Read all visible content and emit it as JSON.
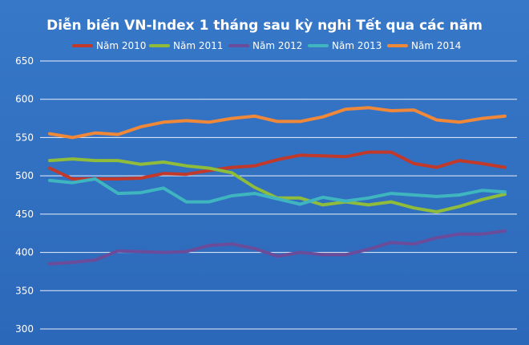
{
  "chart_data": {
    "type": "line",
    "title": "Diễn biến VN-Index 1 tháng sau kỳ nghi Tết qua các năm",
    "xlabel": "",
    "ylabel": "",
    "ylim": [
      300,
      650
    ],
    "yticks": [
      300,
      350,
      400,
      450,
      500,
      550,
      600,
      650
    ],
    "grid": true,
    "legend_position": "top",
    "background_color": "#3374c4",
    "gridline_color": "#ffffff",
    "series": [
      {
        "name": "Năm 2010",
        "color": "#c0392b",
        "values": [
          510,
          496,
          496,
          496,
          497,
          503,
          502,
          507,
          511,
          513,
          521,
          527,
          526,
          525,
          531,
          531,
          516,
          511,
          520,
          516,
          511
        ]
      },
      {
        "name": "Năm 2011",
        "color": "#8fbc3a",
        "values": [
          520,
          522,
          520,
          520,
          515,
          518,
          513,
          510,
          504,
          485,
          471,
          471,
          462,
          466,
          462,
          466,
          458,
          453,
          460,
          469,
          476
        ]
      },
      {
        "name": "Năm 2012",
        "color": "#6b4c9a",
        "values": [
          385,
          387,
          390,
          402,
          401,
          400,
          401,
          409,
          411,
          405,
          395,
          400,
          397,
          397,
          404,
          413,
          411,
          419,
          424,
          424,
          428
        ]
      },
      {
        "name": "Năm 2013",
        "color": "#3fb6bf",
        "values": [
          494,
          491,
          496,
          477,
          478,
          484,
          466,
          466,
          474,
          477,
          470,
          463,
          472,
          467,
          471,
          477,
          475,
          473,
          475,
          481,
          479
        ]
      },
      {
        "name": "Năm 2014",
        "color": "#f0883a",
        "values": [
          555,
          550,
          556,
          554,
          564,
          570,
          572,
          570,
          575,
          578,
          571,
          571,
          577,
          587,
          589,
          585,
          586,
          573,
          570,
          575,
          578
        ]
      }
    ]
  }
}
